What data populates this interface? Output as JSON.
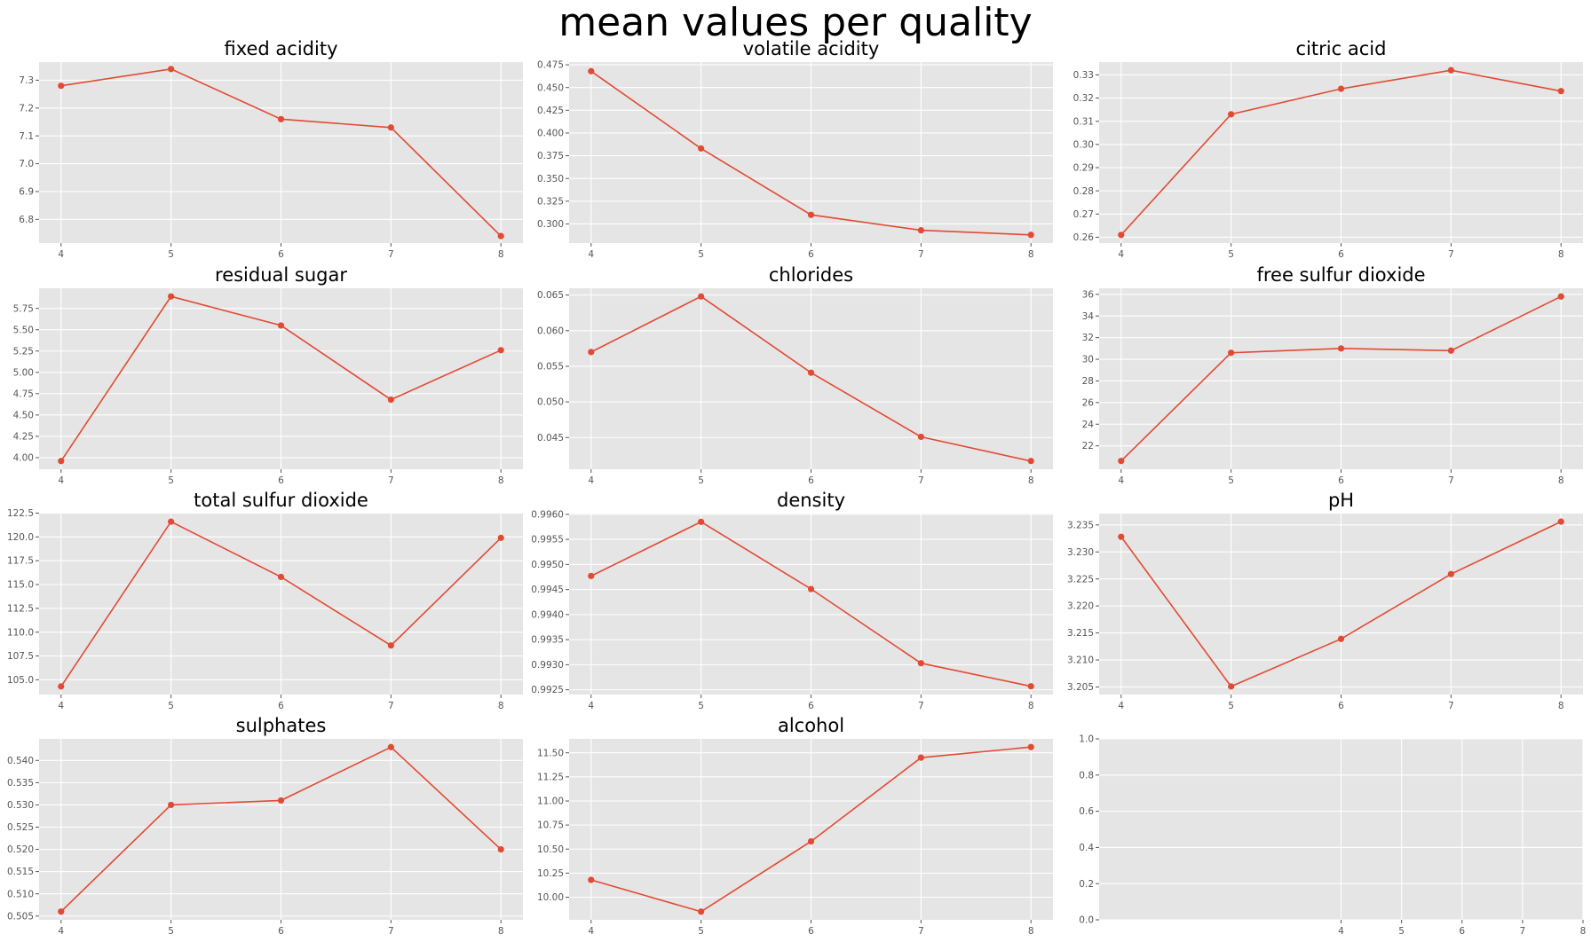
{
  "figure": {
    "title": "mean values per quality"
  },
  "colors": {
    "line": "#e24a33",
    "panel": "#e5e5e5",
    "grid": "#ffffff"
  },
  "chart_data": [
    {
      "type": "line",
      "title": "fixed acidity",
      "x": [
        4,
        5,
        6,
        7,
        8
      ],
      "y": [
        7.28,
        7.34,
        7.16,
        7.13,
        6.74
      ],
      "xticks": [
        4,
        5,
        6,
        7,
        8
      ],
      "yticks": [
        6.8,
        6.9,
        7.0,
        7.1,
        7.2,
        7.3
      ],
      "ylim": [
        6.715,
        7.365
      ],
      "grid": true
    },
    {
      "type": "line",
      "title": "volatile acidity",
      "x": [
        4,
        5,
        6,
        7,
        8
      ],
      "y": [
        0.468,
        0.383,
        0.31,
        0.293,
        0.288
      ],
      "xticks": [
        4,
        5,
        6,
        7,
        8
      ],
      "yticks": [
        0.3,
        0.325,
        0.35,
        0.375,
        0.4,
        0.425,
        0.45,
        0.475
      ],
      "ylim": [
        0.279,
        0.478
      ],
      "grid": true
    },
    {
      "type": "line",
      "title": "citric acid",
      "x": [
        4,
        5,
        6,
        7,
        8
      ],
      "y": [
        0.261,
        0.313,
        0.324,
        0.332,
        0.323
      ],
      "xticks": [
        4,
        5,
        6,
        7,
        8
      ],
      "yticks": [
        0.26,
        0.27,
        0.28,
        0.29,
        0.3,
        0.31,
        0.32,
        0.33
      ],
      "ylim": [
        0.2575,
        0.3355
      ],
      "grid": true
    },
    {
      "type": "line",
      "title": "residual sugar",
      "x": [
        4,
        5,
        6,
        7,
        8
      ],
      "y": [
        3.96,
        5.89,
        5.55,
        4.68,
        5.26
      ],
      "xticks": [
        4,
        5,
        6,
        7,
        8
      ],
      "yticks": [
        4.0,
        4.25,
        4.5,
        4.75,
        5.0,
        5.25,
        5.5,
        5.75
      ],
      "ylim": [
        3.864,
        5.986
      ],
      "grid": true
    },
    {
      "type": "line",
      "title": "chlorides",
      "x": [
        4,
        5,
        6,
        7,
        8
      ],
      "y": [
        0.057,
        0.0648,
        0.0541,
        0.0451,
        0.0417
      ],
      "xticks": [
        4,
        5,
        6,
        7,
        8
      ],
      "yticks": [
        0.045,
        0.05,
        0.055,
        0.06,
        0.065
      ],
      "ylim": [
        0.04055,
        0.06595
      ],
      "grid": true
    },
    {
      "type": "line",
      "title": "free sulfur dioxide",
      "x": [
        4,
        5,
        6,
        7,
        8
      ],
      "y": [
        20.6,
        30.6,
        31.0,
        30.8,
        35.8
      ],
      "xticks": [
        4,
        5,
        6,
        7,
        8
      ],
      "yticks": [
        22,
        24,
        26,
        28,
        30,
        32,
        34,
        36
      ],
      "ylim": [
        19.84,
        36.56
      ],
      "grid": true
    },
    {
      "type": "line",
      "title": "total sulfur dioxide",
      "x": [
        4,
        5,
        6,
        7,
        8
      ],
      "y": [
        104.3,
        121.6,
        115.8,
        108.6,
        119.9
      ],
      "xticks": [
        4,
        5,
        6,
        7,
        8
      ],
      "yticks": [
        105.0,
        107.5,
        110.0,
        112.5,
        115.0,
        117.5,
        120.0,
        122.5
      ],
      "ylim": [
        103.45,
        122.45
      ],
      "grid": true
    },
    {
      "type": "line",
      "title": "density",
      "x": [
        4,
        5,
        6,
        7,
        8
      ],
      "y": [
        0.99477,
        0.99585,
        0.99451,
        0.99303,
        0.99257
      ],
      "xticks": [
        4,
        5,
        6,
        7,
        8
      ],
      "yticks": [
        0.9925,
        0.993,
        0.9935,
        0.994,
        0.9945,
        0.995,
        0.9955,
        0.996
      ],
      "ylim": [
        0.992405,
        0.996015
      ],
      "grid": true
    },
    {
      "type": "line",
      "title": "pH",
      "x": [
        4,
        5,
        6,
        7,
        8
      ],
      "y": [
        3.2328,
        3.2051,
        3.2139,
        3.2259,
        3.2356
      ],
      "xticks": [
        4,
        5,
        6,
        7,
        8
      ],
      "yticks": [
        3.205,
        3.21,
        3.215,
        3.22,
        3.225,
        3.23,
        3.235
      ],
      "ylim": [
        3.2036,
        3.2371
      ],
      "grid": true
    },
    {
      "type": "line",
      "title": "sulphates",
      "x": [
        4,
        5,
        6,
        7,
        8
      ],
      "y": [
        0.506,
        0.53,
        0.531,
        0.543,
        0.52
      ],
      "xticks": [
        4,
        5,
        6,
        7,
        8
      ],
      "yticks": [
        0.505,
        0.51,
        0.515,
        0.52,
        0.525,
        0.53,
        0.535,
        0.54
      ],
      "ylim": [
        0.50415,
        0.54485
      ],
      "grid": true
    },
    {
      "type": "line",
      "title": "alcohol",
      "x": [
        4,
        5,
        6,
        7,
        8
      ],
      "y": [
        10.18,
        9.85,
        10.58,
        11.45,
        11.56
      ],
      "xticks": [
        4,
        5,
        6,
        7,
        8
      ],
      "yticks": [
        10.0,
        10.25,
        10.5,
        10.75,
        11.0,
        11.25,
        11.5
      ],
      "ylim": [
        9.765,
        11.645
      ],
      "grid": true
    },
    {
      "type": "line",
      "title": "",
      "x": [],
      "y": [],
      "xticks": [
        4,
        5,
        6,
        7,
        8
      ],
      "yticks": [
        0.0,
        0.2,
        0.4,
        0.6,
        0.8,
        1.0
      ],
      "xlim": [
        0,
        8
      ],
      "ylim": [
        0,
        1
      ],
      "grid": true
    }
  ]
}
